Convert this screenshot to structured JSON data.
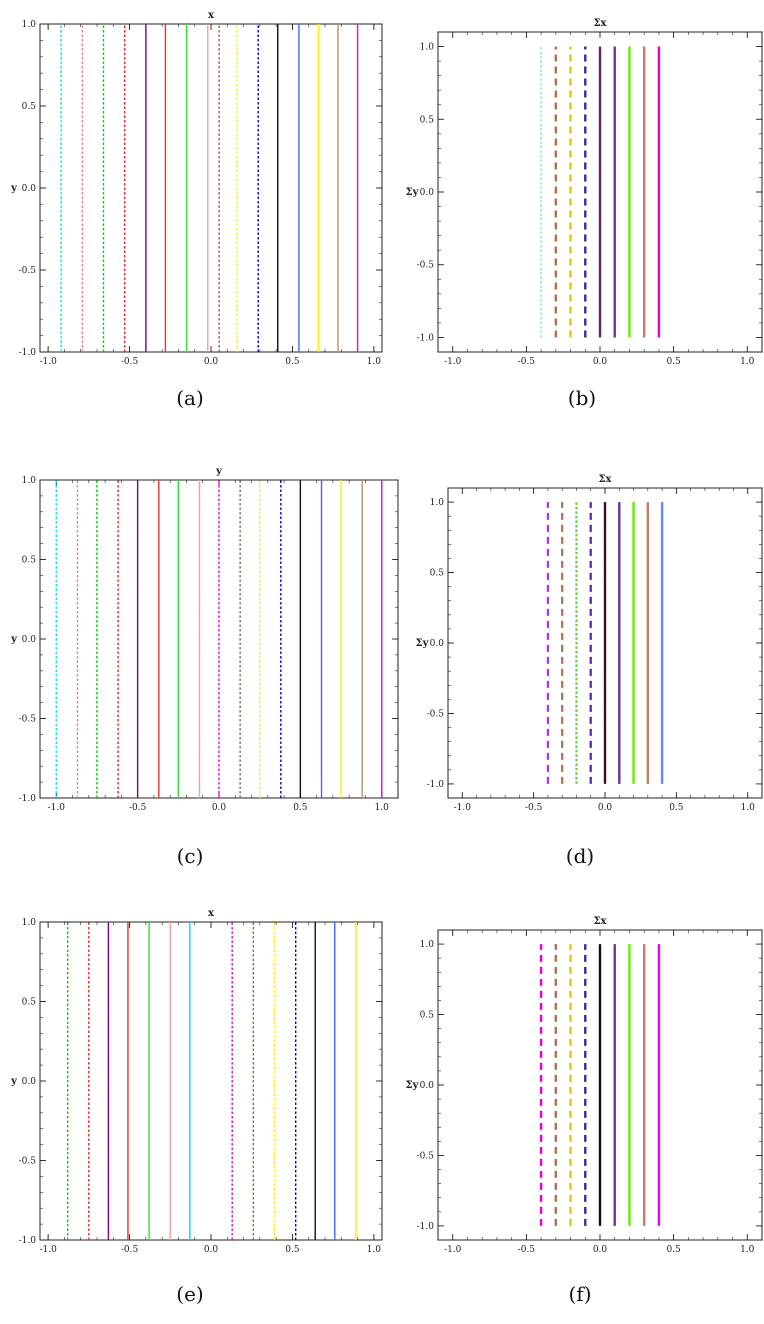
{
  "chart_data": [
    {
      "id": "a",
      "type": "line",
      "title": "x",
      "ylabel": "y",
      "xlim": [
        -1.05,
        1.05
      ],
      "ylim": [
        -1.0,
        1.0
      ],
      "frame": "full",
      "xticks": [
        -1.0,
        -0.5,
        0.0,
        0.5,
        1.0
      ],
      "xtick_labels": [
        "-1.0",
        "-0.5",
        "0.0",
        "0.5",
        "1.0"
      ],
      "yticks": [
        -1.0,
        -0.5,
        0.0,
        0.5,
        1.0
      ],
      "ytick_labels": [
        "-1.0",
        "-0.5",
        "0.0",
        "0.5",
        "1.0"
      ],
      "caption": "(a)",
      "series": [
        {
          "x": -0.92,
          "y": [
            -1.0,
            1.0
          ],
          "color": "#00e5ee",
          "dash": "dotted",
          "width": 1.4
        },
        {
          "x": -0.79,
          "y": [
            -1.0,
            1.0
          ],
          "color": "#f08080",
          "dash": "dotted",
          "width": 1.4
        },
        {
          "x": -0.66,
          "y": [
            -1.0,
            1.0
          ],
          "color": "#00cc00",
          "dash": "dotted",
          "width": 1.4
        },
        {
          "x": -0.53,
          "y": [
            -1.0,
            1.0
          ],
          "color": "#ee2222",
          "dash": "dotted",
          "width": 1.4
        },
        {
          "x": -0.4,
          "y": [
            -1.0,
            1.0
          ],
          "color": "#800080",
          "dash": "solid",
          "width": 1.4
        },
        {
          "x": -0.28,
          "y": [
            -1.0,
            1.0
          ],
          "color": "#ee3333",
          "dash": "solid",
          "width": 1.4
        },
        {
          "x": -0.15,
          "y": [
            -1.0,
            1.0
          ],
          "color": "#33dd33",
          "dash": "solid",
          "width": 1.4
        },
        {
          "x": -0.02,
          "y": [
            -1.0,
            1.0
          ],
          "color": "#f4a0a0",
          "dash": "solid",
          "width": 1.4
        },
        {
          "x": 0.05,
          "y": [
            -1.0,
            1.0
          ],
          "color": "#8b6c4a",
          "dash": "dotted",
          "width": 1.4
        },
        {
          "x": 0.16,
          "y": [
            -1.0,
            1.0
          ],
          "color": "#ffee00",
          "dash": "dotted",
          "width": 1.4
        },
        {
          "x": 0.29,
          "y": [
            -1.0,
            1.0
          ],
          "color": "#0000dd",
          "dash": "dotted",
          "width": 1.4
        },
        {
          "x": 0.41,
          "y": [
            -1.0,
            1.0
          ],
          "color": "#111111",
          "dash": "solid",
          "width": 1.4
        },
        {
          "x": 0.54,
          "y": [
            -1.0,
            1.0
          ],
          "color": "#4466ff",
          "dash": "solid",
          "width": 1.4
        },
        {
          "x": 0.66,
          "y": [
            -1.0,
            1.0
          ],
          "color": "#ffee00",
          "dash": "solid",
          "width": 1.4
        },
        {
          "x": 0.78,
          "y": [
            -1.0,
            1.0
          ],
          "color": "#c09070",
          "dash": "solid",
          "width": 1.4
        },
        {
          "x": 0.9,
          "y": [
            -1.0,
            1.0
          ],
          "color": "#ee00ee",
          "dash": "solid",
          "width": 1.4
        }
      ]
    },
    {
      "id": "b",
      "type": "line",
      "title": "Σx",
      "ylabel": "Σy",
      "xlim": [
        -1.1,
        1.1
      ],
      "ylim": [
        -1.1,
        1.1
      ],
      "frame": "full",
      "xticks": [
        -1.0,
        -0.5,
        0.0,
        0.5,
        1.0
      ],
      "xtick_labels": [
        "-1.0",
        "-0.5",
        "0.0",
        "0.5",
        "1.0"
      ],
      "yticks": [
        -1.0,
        -0.5,
        0.0,
        0.5,
        1.0
      ],
      "ytick_labels": [
        "-1.0",
        "-0.5",
        "0.0",
        "0.5",
        "1.0"
      ],
      "caption": "(b)",
      "series": [
        {
          "x": -0.4,
          "y": [
            -1.0,
            1.0
          ],
          "color": "#66dddd",
          "dash": "dotted",
          "width": 1.2
        },
        {
          "x": -0.3,
          "y": [
            -1.0,
            1.0
          ],
          "color": "#b07050",
          "dash": "dashed",
          "width": 2.4
        },
        {
          "x": -0.2,
          "y": [
            -1.0,
            1.0
          ],
          "color": "#ddcc00",
          "dash": "dashed",
          "width": 2.4
        },
        {
          "x": -0.1,
          "y": [
            -1.0,
            1.0
          ],
          "color": "#4422aa",
          "dash": "dashed",
          "width": 2.4
        },
        {
          "x": 0.0,
          "y": [
            -1.0,
            1.0
          ],
          "color": "#6a2060",
          "dash": "solid",
          "width": 2.4
        },
        {
          "x": 0.1,
          "y": [
            -1.0,
            1.0
          ],
          "color": "#7030a0",
          "dash": "solid",
          "width": 2.4
        },
        {
          "x": 0.2,
          "y": [
            -1.0,
            1.0
          ],
          "color": "#66ee00",
          "dash": "solid",
          "width": 2.4
        },
        {
          "x": 0.3,
          "y": [
            -1.0,
            1.0
          ],
          "color": "#c08060",
          "dash": "solid",
          "width": 2.4
        },
        {
          "x": 0.4,
          "y": [
            -1.0,
            1.0
          ],
          "color": "#ee00cc",
          "dash": "solid",
          "width": 2.4
        }
      ]
    },
    {
      "id": "c",
      "type": "line",
      "title": "y",
      "ylabel": "y",
      "xlim": [
        -1.1,
        1.1
      ],
      "ylim": [
        -1.0,
        1.0
      ],
      "frame": "full",
      "xticks": [
        -1.0,
        -0.5,
        0.0,
        0.5,
        1.0
      ],
      "xtick_labels": [
        "-1.0",
        "-0.5",
        "0.0",
        "0.5",
        "1.0"
      ],
      "yticks": [
        -1.0,
        -0.5,
        0.0,
        0.5,
        1.0
      ],
      "ytick_labels": [
        "-1.0",
        "-0.5",
        "0.0",
        "0.5",
        "1.0"
      ],
      "caption": "(c)",
      "series": [
        {
          "x": -1.0,
          "y": [
            -1.0,
            1.0
          ],
          "color": "#00e5ee",
          "dash": "dotted",
          "width": 1.4
        },
        {
          "x": -0.87,
          "y": [
            -1.0,
            1.0
          ],
          "color": "#f08080",
          "dash": "dotted",
          "width": 1.4
        },
        {
          "x": -0.75,
          "y": [
            -1.0,
            1.0
          ],
          "color": "#00cc00",
          "dash": "dotted",
          "width": 1.4
        },
        {
          "x": -0.62,
          "y": [
            -1.0,
            1.0
          ],
          "color": "#ee2222",
          "dash": "dotted",
          "width": 1.4
        },
        {
          "x": -0.5,
          "y": [
            -1.0,
            1.0
          ],
          "color": "#800080",
          "dash": "solid",
          "width": 1.4
        },
        {
          "x": -0.37,
          "y": [
            -1.0,
            1.0
          ],
          "color": "#ee3333",
          "dash": "solid",
          "width": 1.4
        },
        {
          "x": -0.25,
          "y": [
            -1.0,
            1.0
          ],
          "color": "#33dd33",
          "dash": "solid",
          "width": 1.4
        },
        {
          "x": -0.12,
          "y": [
            -1.0,
            1.0
          ],
          "color": "#f4a0a0",
          "dash": "solid",
          "width": 1.4
        },
        {
          "x": 0.0,
          "y": [
            -1.0,
            1.0
          ],
          "color": "#ee00ee",
          "dash": "dotted",
          "width": 1.4
        },
        {
          "x": 0.13,
          "y": [
            -1.0,
            1.0
          ],
          "color": "#8b6c4a",
          "dash": "dotted",
          "width": 1.4
        },
        {
          "x": 0.25,
          "y": [
            -1.0,
            1.0
          ],
          "color": "#ffee00",
          "dash": "dotted",
          "width": 1.4
        },
        {
          "x": 0.38,
          "y": [
            -1.0,
            1.0
          ],
          "color": "#0000dd",
          "dash": "dotted",
          "width": 1.4
        },
        {
          "x": 0.5,
          "y": [
            -1.0,
            1.0
          ],
          "color": "#111111",
          "dash": "solid",
          "width": 1.4
        },
        {
          "x": 0.63,
          "y": [
            -1.0,
            1.0
          ],
          "color": "#4466ff",
          "dash": "solid",
          "width": 1.4
        },
        {
          "x": 0.75,
          "y": [
            -1.0,
            1.0
          ],
          "color": "#ffee00",
          "dash": "solid",
          "width": 1.4
        },
        {
          "x": 0.88,
          "y": [
            -1.0,
            1.0
          ],
          "color": "#c09070",
          "dash": "solid",
          "width": 1.4
        },
        {
          "x": 1.0,
          "y": [
            -1.0,
            1.0
          ],
          "color": "#ee00ee",
          "dash": "solid",
          "width": 1.4
        }
      ]
    },
    {
      "id": "d",
      "type": "line",
      "title": "Σx",
      "ylabel": "Σy",
      "xlim": [
        -1.1,
        1.1
      ],
      "ylim": [
        -1.1,
        1.1
      ],
      "frame": "full",
      "xticks": [
        -1.0,
        -0.5,
        0.0,
        0.5,
        1.0
      ],
      "xtick_labels": [
        "-1.0",
        "-0.5",
        "0.0",
        "0.5",
        "1.0"
      ],
      "yticks": [
        -1.0,
        -0.5,
        0.0,
        0.5,
        1.0
      ],
      "ytick_labels": [
        "-1.0",
        "-0.5",
        "0.0",
        "0.5",
        "1.0"
      ],
      "caption": "(d)",
      "series": [
        {
          "x": -0.4,
          "y": [
            -1.0,
            1.0
          ],
          "color": "#aa33dd",
          "dash": "dashed",
          "width": 2.2
        },
        {
          "x": -0.3,
          "y": [
            -1.0,
            1.0
          ],
          "color": "#b07050",
          "dash": "dashed",
          "width": 2.2
        },
        {
          "x": -0.2,
          "y": [
            -1.0,
            1.0
          ],
          "color": "#66cc44",
          "dash": "dotted",
          "width": 2.2
        },
        {
          "x": -0.1,
          "y": [
            -1.0,
            1.0
          ],
          "color": "#5522aa",
          "dash": "dashed",
          "width": 2.2
        },
        {
          "x": 0.0,
          "y": [
            -1.0,
            1.0
          ],
          "color": "#3a1030",
          "dash": "solid",
          "width": 2.4
        },
        {
          "x": 0.1,
          "y": [
            -1.0,
            1.0
          ],
          "color": "#7030a0",
          "dash": "solid",
          "width": 2.4
        },
        {
          "x": 0.2,
          "y": [
            -1.0,
            1.0
          ],
          "color": "#66ee00",
          "dash": "solid",
          "width": 2.4
        },
        {
          "x": 0.3,
          "y": [
            -1.0,
            1.0
          ],
          "color": "#c08060",
          "dash": "solid",
          "width": 2.4
        },
        {
          "x": 0.4,
          "y": [
            -1.0,
            1.0
          ],
          "color": "#6688ff",
          "dash": "solid",
          "width": 2.4
        }
      ]
    },
    {
      "id": "e",
      "type": "line",
      "title": "x",
      "ylabel": "y",
      "xlim": [
        -1.05,
        1.05
      ],
      "ylim": [
        -1.0,
        1.0
      ],
      "frame": "full",
      "xticks": [
        -1.0,
        -0.5,
        0.0,
        0.5,
        1.0
      ],
      "xtick_labels": [
        "-1.0",
        "-0.5",
        "0.0",
        "0.5",
        "1.0"
      ],
      "yticks": [
        -1.0,
        -0.5,
        0.0,
        0.5,
        1.0
      ],
      "ytick_labels": [
        "-1.0",
        "-0.5",
        "0.0",
        "0.5",
        "1.0"
      ],
      "caption": "(e)",
      "series": [
        {
          "x": -0.88,
          "y": [
            -1.0,
            1.0
          ],
          "color": "#00cc00",
          "dash": "dotted",
          "width": 1.4
        },
        {
          "x": -0.75,
          "y": [
            -1.0,
            1.0
          ],
          "color": "#ee2222",
          "dash": "dotted",
          "width": 1.4
        },
        {
          "x": -0.63,
          "y": [
            -1.0,
            1.0
          ],
          "color": "#800080",
          "dash": "solid",
          "width": 1.4
        },
        {
          "x": -0.51,
          "y": [
            -1.0,
            1.0
          ],
          "color": "#ee3333",
          "dash": "solid",
          "width": 1.4
        },
        {
          "x": -0.38,
          "y": [
            -1.0,
            1.0
          ],
          "color": "#33dd33",
          "dash": "solid",
          "width": 1.4
        },
        {
          "x": -0.25,
          "y": [
            -1.0,
            1.0
          ],
          "color": "#f4a0a0",
          "dash": "solid",
          "width": 1.4
        },
        {
          "x": -0.13,
          "y": [
            -1.0,
            1.0
          ],
          "color": "#00dddd",
          "dash": "solid",
          "width": 1.4
        },
        {
          "x": 0.13,
          "y": [
            -1.0,
            1.0
          ],
          "color": "#ee00ee",
          "dash": "dotted",
          "width": 1.4
        },
        {
          "x": 0.26,
          "y": [
            -1.0,
            1.0
          ],
          "color": "#8b6c4a",
          "dash": "dotted",
          "width": 1.4
        },
        {
          "x": 0.39,
          "y": [
            -1.0,
            1.0
          ],
          "color": "#ffee00",
          "dash": "dotted",
          "width": 1.4
        },
        {
          "x": 0.52,
          "y": [
            -1.0,
            1.0
          ],
          "color": "#0000dd",
          "dash": "dotted",
          "width": 1.4
        },
        {
          "x": 0.64,
          "y": [
            -1.0,
            1.0
          ],
          "color": "#111111",
          "dash": "solid",
          "width": 1.4
        },
        {
          "x": 0.76,
          "y": [
            -1.0,
            1.0
          ],
          "color": "#4466ff",
          "dash": "solid",
          "width": 1.4
        },
        {
          "x": 0.89,
          "y": [
            -1.0,
            1.0
          ],
          "color": "#ffee00",
          "dash": "solid",
          "width": 1.4
        }
      ]
    },
    {
      "id": "f",
      "type": "line",
      "title": "Σx",
      "ylabel": "Σy",
      "xlim": [
        -1.1,
        1.1
      ],
      "ylim": [
        -1.1,
        1.1
      ],
      "frame": "full",
      "xticks": [
        -1.0,
        -0.5,
        0.0,
        0.5,
        1.0
      ],
      "xtick_labels": [
        "-1.0",
        "-0.5",
        "0.0",
        "0.5",
        "1.0"
      ],
      "yticks": [
        -1.0,
        -0.5,
        0.0,
        0.5,
        1.0
      ],
      "ytick_labels": [
        "-1.0",
        "-0.5",
        "0.0",
        "0.5",
        "1.0"
      ],
      "caption": "(f)",
      "series": [
        {
          "x": -0.4,
          "y": [
            -1.0,
            1.0
          ],
          "color": "#ee00cc",
          "dash": "dashed",
          "width": 2.4
        },
        {
          "x": -0.3,
          "y": [
            -1.0,
            1.0
          ],
          "color": "#b07050",
          "dash": "dashed",
          "width": 2.4
        },
        {
          "x": -0.2,
          "y": [
            -1.0,
            1.0
          ],
          "color": "#ddcc00",
          "dash": "dashed",
          "width": 2.4
        },
        {
          "x": -0.1,
          "y": [
            -1.0,
            1.0
          ],
          "color": "#4422aa",
          "dash": "dashed",
          "width": 2.4
        },
        {
          "x": 0.0,
          "y": [
            -1.0,
            1.0
          ],
          "color": "#111111",
          "dash": "solid",
          "width": 2.4
        },
        {
          "x": 0.1,
          "y": [
            -1.0,
            1.0
          ],
          "color": "#7030a0",
          "dash": "solid",
          "width": 2.4
        },
        {
          "x": 0.2,
          "y": [
            -1.0,
            1.0
          ],
          "color": "#66ee00",
          "dash": "solid",
          "width": 2.4
        },
        {
          "x": 0.3,
          "y": [
            -1.0,
            1.0
          ],
          "color": "#c08060",
          "dash": "solid",
          "width": 2.4
        },
        {
          "x": 0.4,
          "y": [
            -1.0,
            1.0
          ],
          "color": "#ee00ee",
          "dash": "solid",
          "width": 2.4
        }
      ]
    }
  ]
}
